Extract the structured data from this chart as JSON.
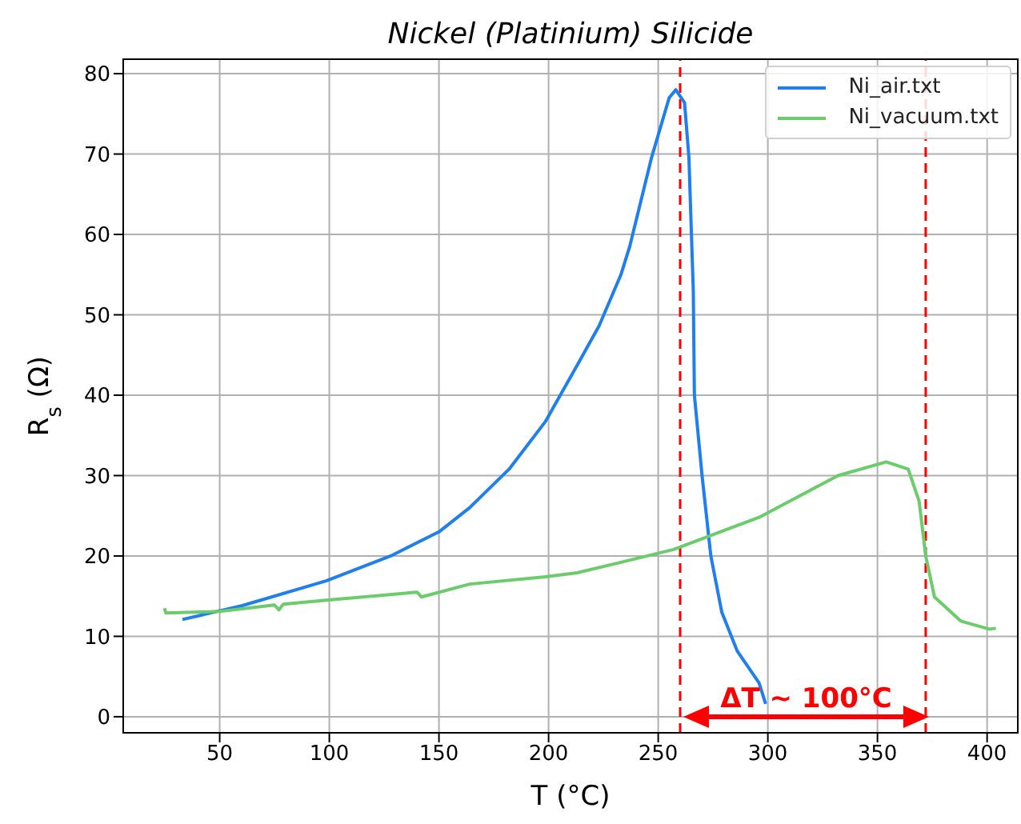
{
  "chart_data": {
    "type": "line",
    "title": "Nickel (Platinium) Silicide",
    "xlabel": "T (°C)",
    "ylabel": "R$_{s}$ (Ω)",
    "xlim": [
      6,
      414
    ],
    "ylim": [
      -2,
      81.8
    ],
    "xticks": [
      50,
      100,
      150,
      200,
      250,
      300,
      350,
      400
    ],
    "yticks": [
      0,
      10,
      20,
      30,
      40,
      50,
      60,
      70,
      80
    ],
    "grid": true,
    "legend": "top right",
    "series": [
      {
        "name": "Ni_air.txt",
        "color": "#1f7fef",
        "x": [
          33,
          60,
          98.5,
          128,
          150,
          164,
          182,
          198.5,
          213,
          223,
          233,
          237,
          247,
          255,
          258,
          262,
          264,
          266,
          266.5,
          270,
          274,
          279,
          286,
          296,
          299
        ],
        "values": [
          12.1,
          13.8,
          16.9,
          20,
          23,
          26,
          30.8,
          36.7,
          43.7,
          48.6,
          55,
          58.5,
          69.6,
          77,
          78,
          76.4,
          69.6,
          53,
          40,
          30,
          20,
          13,
          8.2,
          4.2,
          1.6
        ]
      },
      {
        "name": "Ni_vacuum.txt",
        "color": "#6acc6a",
        "x": [
          24.8,
          25.5,
          50,
          75,
          77,
          79,
          98.5,
          140,
          142,
          164,
          198.5,
          213,
          257,
          296,
          332,
          354,
          364,
          369,
          372,
          376,
          388,
          401,
          404
        ],
        "values": [
          13.5,
          12.9,
          13.1,
          13.9,
          13.3,
          14,
          14.5,
          15.5,
          14.9,
          16.5,
          17.4,
          17.9,
          20.8,
          24.8,
          30,
          31.7,
          30.8,
          26.8,
          20,
          14.9,
          11.9,
          10.9,
          11
        ]
      }
    ],
    "ref_lines": [
      {
        "axis": "x",
        "value": 260,
        "color": "#ff0000",
        "line_style": "dashed"
      },
      {
        "axis": "x",
        "value": 372,
        "color": "#ff0000",
        "line_style": "dashed"
      }
    ],
    "annotations": [
      "ΔT ~ 100°C"
    ]
  }
}
